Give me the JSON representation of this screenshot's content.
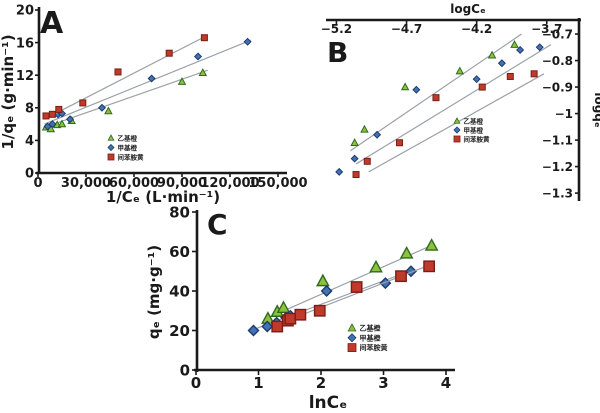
{
  "figure": {
    "background": "#ffffff",
    "text_color": "#1a1a1a",
    "axis_color": "#1a1a1a",
    "fit_line_color": "#9aa1a9"
  },
  "series_styles": {
    "triangle": {
      "fill": "#8fbf3f",
      "stroke": "#2e6b1f"
    },
    "diamond": {
      "fill": "#4472b0",
      "stroke": "#1b3a70"
    },
    "square": {
      "fill": "#bf3a2b",
      "stroke": "#7a1d15"
    }
  },
  "chart_data": [
    {
      "panel": "A",
      "type": "scatter",
      "xlabel": "1/Cₑ (L·min⁻¹)",
      "ylabel": "1/qₑ (g·min⁻¹)",
      "xlim": [
        0,
        155000
      ],
      "ylim": [
        0,
        20
      ],
      "xticks": [
        {
          "v": 0,
          "label": "0"
        },
        {
          "v": 30000,
          "label": "30,000"
        },
        {
          "v": 60000,
          "label": "60,000"
        },
        {
          "v": 90000,
          "label": "90,000"
        },
        {
          "v": 120000,
          "label": "120,000"
        },
        {
          "v": 150000,
          "label": "150,000"
        }
      ],
      "yticks": [
        {
          "v": 0,
          "label": "0"
        },
        {
          "v": 4,
          "label": "4"
        },
        {
          "v": 8,
          "label": "8"
        },
        {
          "v": 12,
          "label": "12"
        },
        {
          "v": 16,
          "label": "16"
        },
        {
          "v": 20,
          "label": "20"
        }
      ],
      "series": [
        {
          "name": "乙基橙",
          "marker": "triangle",
          "points": [
            [
              5000,
              5.6
            ],
            [
              8000,
              5.4
            ],
            [
              12000,
              5.9
            ],
            [
              15000,
              6.0
            ],
            [
              21000,
              6.4
            ],
            [
              44000,
              7.6
            ],
            [
              90000,
              11.2
            ],
            [
              103000,
              12.3
            ]
          ],
          "fit": [
            [
              4000,
              5.6
            ],
            [
              106000,
              12.6
            ]
          ]
        },
        {
          "name": "甲基橙",
          "marker": "diamond",
          "points": [
            [
              6000,
              5.7
            ],
            [
              9000,
              6.0
            ],
            [
              12500,
              7.2
            ],
            [
              15000,
              7.3
            ],
            [
              20000,
              6.6
            ],
            [
              40000,
              8.0
            ],
            [
              71000,
              11.6
            ],
            [
              100000,
              14.3
            ],
            [
              131000,
              16.1
            ]
          ],
          "fit": [
            [
              4000,
              6.0
            ],
            [
              133000,
              16.3
            ]
          ]
        },
        {
          "name": "间苯胺黄",
          "marker": "square",
          "points": [
            [
              5000,
              7.0
            ],
            [
              9000,
              7.2
            ],
            [
              13000,
              7.8
            ],
            [
              28000,
              8.6
            ],
            [
              50000,
              12.4
            ],
            [
              82000,
              14.7
            ],
            [
              104000,
              16.6
            ]
          ],
          "fit": [
            [
              4000,
              6.6
            ],
            [
              106000,
              16.9
            ]
          ]
        }
      ]
    },
    {
      "panel": "B",
      "type": "scatter",
      "xlabel": "logCₑ",
      "ylabel": "logqₑ",
      "xlim": [
        -5.26,
        -3.47
      ],
      "ylim": [
        -1.326,
        -0.647
      ],
      "xticks": [
        {
          "v": -5.2,
          "label": "−5.2"
        },
        {
          "v": -4.7,
          "label": "−4.7"
        },
        {
          "v": -4.2,
          "label": "−4.2"
        },
        {
          "v": -3.7,
          "label": "−3.7"
        }
      ],
      "yticks": [
        {
          "v": -0.7,
          "label": "−0.7"
        },
        {
          "v": -0.8,
          "label": "−0.8"
        },
        {
          "v": -0.9,
          "label": "−0.9"
        },
        {
          "v": -1.0,
          "label": "−1"
        },
        {
          "v": -1.1,
          "label": "−1.1"
        },
        {
          "v": -1.2,
          "label": "−1.2"
        },
        {
          "v": -1.3,
          "label": "−1.3"
        }
      ],
      "series": [
        {
          "name": "乙基橙",
          "marker": "triangle",
          "points": [
            [
              -5.07,
              -1.11
            ],
            [
              -5.0,
              -1.06
            ],
            [
              -4.71,
              -0.9
            ],
            [
              -4.32,
              -0.84
            ],
            [
              -4.09,
              -0.78
            ],
            [
              -3.93,
              -0.74
            ]
          ],
          "fit": [
            [
              -5.1,
              -1.14
            ],
            [
              -3.88,
              -0.7
            ]
          ]
        },
        {
          "name": "甲基橙",
          "marker": "diamond",
          "points": [
            [
              -5.18,
              -1.22
            ],
            [
              -5.07,
              -1.17
            ],
            [
              -4.91,
              -1.08
            ],
            [
              -4.63,
              -0.91
            ],
            [
              -4.2,
              -0.87
            ],
            [
              -4.02,
              -0.81
            ],
            [
              -3.89,
              -0.76
            ],
            [
              -3.75,
              -0.75
            ]
          ],
          "fit": [
            [
              -5.06,
              -1.19
            ],
            [
              -3.67,
              -0.74
            ]
          ]
        },
        {
          "name": "间苯胺黄",
          "marker": "square",
          "points": [
            [
              -5.06,
              -1.23
            ],
            [
              -4.98,
              -1.18
            ],
            [
              -4.75,
              -1.11
            ],
            [
              -4.49,
              -0.94
            ],
            [
              -4.16,
              -0.9
            ],
            [
              -3.96,
              -0.86
            ],
            [
              -3.79,
              -0.85
            ]
          ],
          "fit": [
            [
              -4.97,
              -1.22
            ],
            [
              -3.72,
              -0.85
            ]
          ]
        }
      ]
    },
    {
      "panel": "C",
      "type": "scatter",
      "xlabel": "lnCₑ",
      "ylabel": "qₑ (mg·g⁻¹)",
      "xlim": [
        0,
        4
      ],
      "ylim": [
        0,
        80
      ],
      "xticks": [
        {
          "v": 0,
          "label": "0"
        },
        {
          "v": 1,
          "label": "1"
        },
        {
          "v": 2,
          "label": "2"
        },
        {
          "v": 3,
          "label": "3"
        },
        {
          "v": 4,
          "label": "4"
        }
      ],
      "yticks": [
        {
          "v": 0,
          "label": "0"
        },
        {
          "v": 20,
          "label": "20"
        },
        {
          "v": 40,
          "label": "40"
        },
        {
          "v": 60,
          "label": "60"
        },
        {
          "v": 80,
          "label": "80"
        }
      ],
      "series": [
        {
          "name": "乙基橙",
          "marker": "triangle",
          "points": [
            [
              1.15,
              26
            ],
            [
              1.3,
              29.5
            ],
            [
              1.4,
              31.5
            ],
            [
              2.03,
              45
            ],
            [
              2.88,
              52
            ],
            [
              3.37,
              59
            ],
            [
              3.77,
              63
            ]
          ],
          "fit": [
            [
              1.12,
              26
            ],
            [
              3.8,
              63.5
            ]
          ]
        },
        {
          "name": "甲基橙",
          "marker": "diamond",
          "points": [
            [
              0.92,
              20
            ],
            [
              1.14,
              22
            ],
            [
              1.29,
              24
            ],
            [
              1.44,
              26.5
            ],
            [
              1.51,
              27.5
            ],
            [
              2.09,
              40
            ],
            [
              3.03,
              44
            ],
            [
              3.44,
              50
            ]
          ],
          "fit": [
            [
              0.88,
              20
            ],
            [
              3.5,
              51
            ]
          ]
        },
        {
          "name": "间苯胺黄",
          "marker": "square",
          "points": [
            [
              1.3,
              22
            ],
            [
              1.47,
              25
            ],
            [
              1.51,
              26
            ],
            [
              1.67,
              28
            ],
            [
              1.98,
              30
            ],
            [
              2.57,
              42
            ],
            [
              3.28,
              47.5
            ],
            [
              3.73,
              52.5
            ]
          ],
          "fit": [
            [
              1.25,
              22.5
            ],
            [
              3.77,
              53.5
            ]
          ]
        }
      ]
    }
  ]
}
